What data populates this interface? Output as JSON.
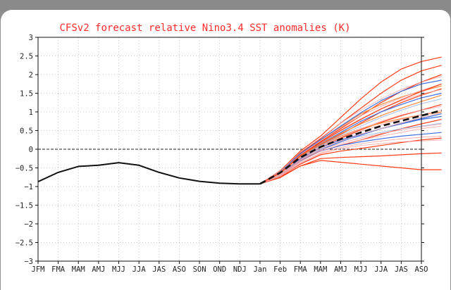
{
  "colors": {
    "page_background": "#8f8f8f",
    "panel_background": "#ffffff",
    "title": "#ff2a2a",
    "observed_line": "#111111",
    "ensemble_mean": "#111111",
    "member_red": "#ff3b14",
    "member_pink": "#f7a2a2",
    "member_blue": "#3d6ee0",
    "member_lightblue": "#8fb0f0",
    "member_orange": "#ff8a3d",
    "zero_line": "#222222",
    "grid": "#b9b9b9"
  },
  "chart_data": {
    "type": "line",
    "title": "CFSv2 forecast relative Nino3.4 SST anomalies (K)",
    "xlabel": "",
    "ylabel": "",
    "categories": [
      "JFM",
      "FMA",
      "MAM",
      "AMJ",
      "MJJ",
      "JJA",
      "JAS",
      "ASO",
      "SON",
      "OND",
      "NDJ",
      "Jan",
      "Feb",
      "FMA",
      "MAM",
      "AMJ",
      "MJJ",
      "JJA",
      "JAS",
      "ASO"
    ],
    "yticks": [
      3,
      2.5,
      2,
      1.5,
      1,
      0.5,
      0,
      -0.5,
      -1,
      -1.5,
      -2,
      -2.5,
      -3
    ],
    "ylim": [
      -3,
      3
    ],
    "grid": true,
    "reference_line": 0,
    "observed": {
      "style": "solid-black",
      "values": [
        -0.87,
        -0.62,
        -0.46,
        -0.43,
        -0.36,
        -0.43,
        -0.62,
        -0.77,
        -0.86,
        -0.91,
        -0.93,
        -0.93
      ]
    },
    "ensemble_mean": {
      "style": "dashed-black",
      "x_start_index": 11,
      "values": [
        -0.93,
        -0.63,
        -0.22,
        0.06,
        0.27,
        0.45,
        0.62,
        0.76,
        0.9,
        1.04
      ]
    },
    "members": [
      {
        "color": "member_red",
        "values": [
          -0.93,
          -0.58,
          -0.05,
          0.35,
          0.85,
          1.35,
          1.8,
          2.15,
          2.35,
          2.47
        ]
      },
      {
        "color": "member_red",
        "values": [
          -0.93,
          -0.6,
          -0.1,
          0.28,
          0.7,
          1.1,
          1.5,
          1.85,
          2.1,
          2.25
        ]
      },
      {
        "color": "member_red",
        "values": [
          -0.93,
          -0.62,
          -0.15,
          0.2,
          0.55,
          0.9,
          1.25,
          1.55,
          1.8,
          2.0
        ]
      },
      {
        "color": "member_red",
        "values": [
          -0.93,
          -0.65,
          -0.2,
          0.12,
          0.4,
          0.7,
          1.0,
          1.25,
          1.45,
          1.62
        ]
      },
      {
        "color": "member_red",
        "values": [
          -0.93,
          -0.7,
          -0.3,
          -0.05,
          0.1,
          0.25,
          0.4,
          0.55,
          0.68,
          0.8
        ]
      },
      {
        "color": "member_red",
        "values": [
          -0.93,
          -0.72,
          -0.4,
          -0.15,
          -0.05,
          0.02,
          0.1,
          0.18,
          0.25,
          0.3
        ]
      },
      {
        "color": "member_red",
        "values": [
          -0.93,
          -0.74,
          -0.45,
          -0.25,
          -0.22,
          -0.2,
          -0.18,
          -0.15,
          -0.12,
          -0.1
        ]
      },
      {
        "color": "member_red",
        "values": [
          -0.93,
          -0.76,
          -0.45,
          -0.3,
          -0.35,
          -0.4,
          -0.45,
          -0.5,
          -0.55,
          -0.55
        ]
      },
      {
        "color": "member_red",
        "values": [
          -0.93,
          -0.68,
          -0.25,
          0.05,
          0.3,
          0.52,
          0.72,
          0.9,
          1.05,
          1.2
        ]
      },
      {
        "color": "member_orange",
        "values": [
          -0.93,
          -0.61,
          -0.12,
          0.25,
          0.6,
          0.95,
          1.2,
          1.4,
          1.55,
          1.7
        ]
      },
      {
        "color": "member_orange",
        "values": [
          -0.93,
          -0.66,
          -0.22,
          0.1,
          0.35,
          0.55,
          0.7,
          0.82,
          0.92,
          1.0
        ]
      },
      {
        "color": "member_blue",
        "values": [
          -0.93,
          -0.6,
          -0.12,
          0.25,
          0.62,
          0.98,
          1.3,
          1.55,
          1.75,
          1.85
        ]
      },
      {
        "color": "member_blue",
        "values": [
          -0.93,
          -0.62,
          -0.18,
          0.15,
          0.45,
          0.75,
          1.0,
          1.2,
          1.38,
          1.5
        ]
      },
      {
        "color": "member_blue",
        "values": [
          -0.93,
          -0.67,
          -0.25,
          0.05,
          0.25,
          0.4,
          0.55,
          0.68,
          0.8,
          0.88
        ]
      },
      {
        "color": "member_blue",
        "values": [
          -0.93,
          -0.7,
          -0.32,
          -0.05,
          0.1,
          0.2,
          0.28,
          0.35,
          0.4,
          0.45
        ]
      },
      {
        "color": "member_blue",
        "values": [
          -0.93,
          -0.69,
          -0.28,
          -0.02,
          0.2,
          0.38,
          0.55,
          0.7,
          0.82,
          0.95
        ]
      },
      {
        "color": "member_lightblue",
        "values": [
          -0.93,
          -0.64,
          -0.2,
          0.1,
          0.38,
          0.62,
          0.85,
          1.05,
          1.22,
          1.35
        ]
      },
      {
        "color": "member_lightblue",
        "values": [
          -0.93,
          -0.68,
          -0.3,
          0.0,
          0.22,
          0.35,
          0.45,
          0.55,
          0.62,
          0.7
        ]
      },
      {
        "color": "member_pink",
        "values": [
          -0.93,
          -0.59,
          -0.08,
          0.3,
          0.7,
          1.05,
          1.35,
          1.6,
          1.8,
          1.95
        ]
      },
      {
        "color": "member_pink",
        "values": [
          -0.93,
          -0.63,
          -0.18,
          0.18,
          0.52,
          0.82,
          1.08,
          1.3,
          1.48,
          1.6
        ]
      },
      {
        "color": "member_pink",
        "values": [
          -0.93,
          -0.66,
          -0.23,
          0.08,
          0.32,
          0.55,
          0.75,
          0.92,
          1.05,
          1.15
        ]
      },
      {
        "color": "member_pink",
        "values": [
          -0.93,
          -0.69,
          -0.28,
          0.02,
          0.22,
          0.4,
          0.55,
          0.7,
          0.85,
          0.98
        ]
      },
      {
        "color": "member_pink",
        "values": [
          -0.93,
          -0.71,
          -0.33,
          -0.05,
          0.12,
          0.25,
          0.35,
          0.45,
          0.55,
          0.62
        ]
      },
      {
        "color": "member_pink",
        "values": [
          -0.93,
          -0.73,
          -0.38,
          -0.12,
          0.02,
          0.1,
          0.15,
          0.2,
          0.22,
          0.25
        ]
      },
      {
        "color": "member_pink",
        "values": [
          -0.93,
          -0.62,
          -0.15,
          0.22,
          0.58,
          0.9,
          1.15,
          1.38,
          1.58,
          1.75
        ]
      },
      {
        "color": "member_pink",
        "values": [
          -0.93,
          -0.67,
          -0.24,
          0.06,
          0.28,
          0.48,
          0.65,
          0.8,
          0.92,
          1.05
        ]
      },
      {
        "color": "member_pink",
        "values": [
          -0.93,
          -0.7,
          -0.3,
          -0.02,
          0.16,
          0.3,
          0.42,
          0.52,
          0.6,
          0.68
        ]
      },
      {
        "color": "member_pink",
        "values": [
          -0.93,
          -0.72,
          -0.36,
          -0.1,
          0.05,
          0.15,
          0.22,
          0.28,
          0.32,
          0.35
        ]
      },
      {
        "color": "member_orange",
        "values": [
          -0.93,
          -0.64,
          -0.19,
          0.14,
          0.42,
          0.68,
          0.9,
          1.1,
          1.28,
          1.45
        ]
      },
      {
        "color": "member_red",
        "values": [
          -0.93,
          -0.63,
          -0.17,
          0.18,
          0.5,
          0.8,
          1.08,
          1.32,
          1.55,
          1.75
        ]
      }
    ]
  }
}
